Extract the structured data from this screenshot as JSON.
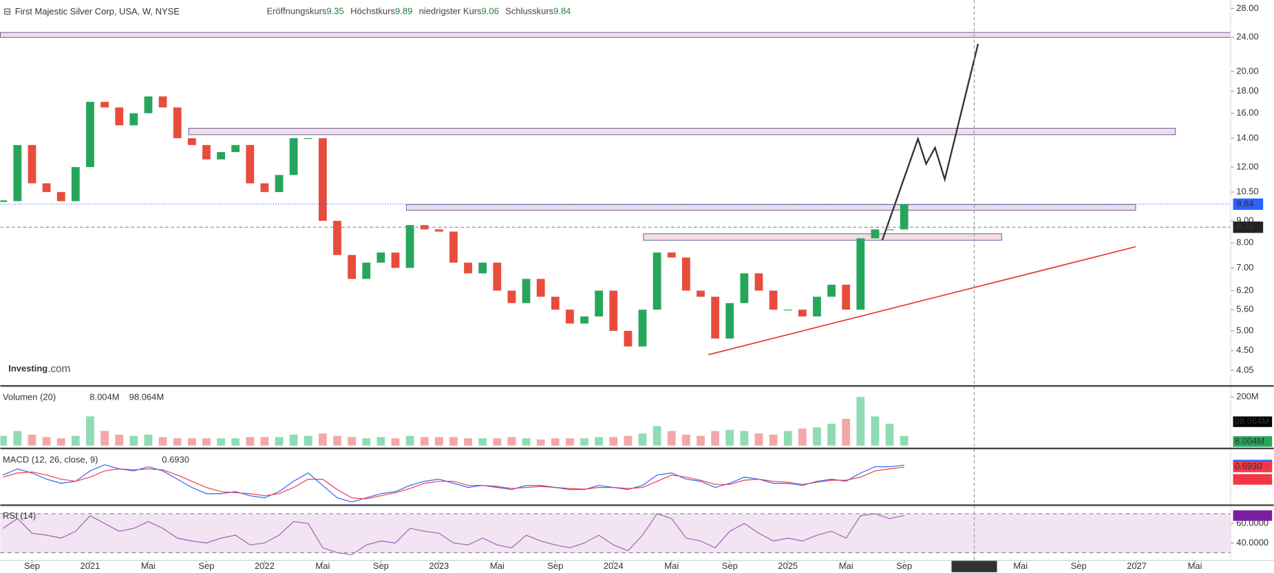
{
  "chart_data": [
    {
      "type": "candlestick",
      "title": "First Majestic Silver Corp, USA, W, NYSE",
      "stats": [
        {
          "label": "Eröffnungskurs",
          "value": 9.35
        },
        {
          "label": "Höchstkurs",
          "value": 9.89
        },
        {
          "label": "niedrigster Kurs",
          "value": 9.06
        },
        {
          "label": "Schlusskurs",
          "value": 9.84
        }
      ],
      "logo": "Investing",
      "logo_suffix": ".com",
      "x": [
        "2020-07",
        "2020-08",
        "2020-09",
        "2020-10",
        "2020-11",
        "2020-12",
        "2021-01",
        "2021-02",
        "2021-03",
        "2021-04",
        "2021-05",
        "2021-06",
        "2021-07",
        "2021-08",
        "2021-09",
        "2021-10",
        "2021-11",
        "2021-12",
        "2022-01",
        "2022-02",
        "2022-03",
        "2022-04",
        "2022-05",
        "2022-06",
        "2022-07",
        "2022-08",
        "2022-09",
        "2022-10",
        "2022-11",
        "2022-12",
        "2023-01",
        "2023-02",
        "2023-03",
        "2023-04",
        "2023-05",
        "2023-06",
        "2023-07",
        "2023-08",
        "2023-09",
        "2023-10",
        "2023-11",
        "2023-12",
        "2024-01",
        "2024-02",
        "2024-03",
        "2024-04",
        "2024-05",
        "2024-06",
        "2024-07",
        "2024-08",
        "2024-09",
        "2024-10",
        "2024-11",
        "2024-12",
        "2025-01",
        "2025-02",
        "2025-03",
        "2025-04",
        "2025-05",
        "2025-06",
        "2025-07",
        "2025-08",
        "2025-09"
      ],
      "close": [
        10.0,
        13.5,
        11.0,
        10.5,
        10.0,
        12.0,
        17.0,
        16.5,
        15.0,
        16.0,
        17.5,
        16.5,
        14.0,
        13.5,
        12.5,
        13.0,
        13.5,
        11.0,
        10.5,
        11.5,
        14.0,
        14.0,
        9.0,
        7.5,
        6.6,
        7.2,
        7.6,
        7.0,
        8.8,
        8.6,
        8.5,
        7.2,
        6.8,
        7.2,
        6.2,
        5.8,
        6.6,
        6.0,
        5.6,
        5.2,
        5.4,
        6.2,
        5.0,
        4.6,
        5.6,
        7.6,
        7.4,
        6.2,
        6.0,
        4.8,
        5.8,
        6.8,
        6.2,
        5.6,
        5.6,
        5.4,
        6.0,
        6.4,
        5.6,
        8.2,
        8.6,
        8.6,
        9.84
      ],
      "up_color": "#26a65b",
      "down_color": "#e84c3d",
      "log_scale": true,
      "ylim": [
        3.75,
        29.3
      ],
      "yticks": [
        {
          "value": 28,
          "label": "28.00"
        },
        {
          "value": 24,
          "label": "24.00"
        },
        {
          "value": 20,
          "label": "20.00"
        },
        {
          "value": 18,
          "label": "18.00"
        },
        {
          "value": 16,
          "label": "16.00"
        },
        {
          "value": 14,
          "label": "14.00"
        },
        {
          "value": 12,
          "label": "12.00"
        },
        {
          "value": 10.5,
          "label": "10.50"
        },
        {
          "value": 9,
          "label": "9.00"
        },
        {
          "value": 8,
          "label": "8.00"
        },
        {
          "value": 7,
          "label": "7.00"
        },
        {
          "value": 6.2,
          "label": "6.20"
        },
        {
          "value": 5.6,
          "label": "5.60"
        },
        {
          "value": 5,
          "label": "5.00"
        },
        {
          "value": 4.5,
          "label": "4.50"
        },
        {
          "value": 4.05,
          "label": "4.05"
        }
      ],
      "xlim": [
        "2020-06",
        "2027-07"
      ],
      "xticks": [
        {
          "value": "2020-09",
          "label": "Sep"
        },
        {
          "value": "2021-01",
          "label": "2021"
        },
        {
          "value": "2021-05",
          "label": "Mai"
        },
        {
          "value": "2021-09",
          "label": "Sep"
        },
        {
          "value": "2022-01",
          "label": "2022"
        },
        {
          "value": "2022-05",
          "label": "Mai"
        },
        {
          "value": "2022-09",
          "label": "Sep"
        },
        {
          "value": "2023-01",
          "label": "2023"
        },
        {
          "value": "2023-05",
          "label": "Mai"
        },
        {
          "value": "2023-09",
          "label": "Sep"
        },
        {
          "value": "2024-01",
          "label": "2024"
        },
        {
          "value": "2024-05",
          "label": "Mai"
        },
        {
          "value": "2024-09",
          "label": "Sep"
        },
        {
          "value": "2025-01",
          "label": "2025"
        },
        {
          "value": "2025-05",
          "label": "Mai"
        },
        {
          "value": "2025-09",
          "label": "Sep"
        },
        {
          "value": "2026-05",
          "label": "Mai"
        },
        {
          "value": "2026-09",
          "label": "Sep"
        },
        {
          "value": "2027-01",
          "label": "2027"
        },
        {
          "value": "2027-05",
          "label": "Mai"
        }
      ],
      "last_price": 9.84,
      "crosshair_price": {
        "value": 8.7,
        "label": "8.70"
      },
      "crosshair_date": "2026-01-26"
    },
    {
      "type": "bar",
      "title": "Volumen (20)",
      "color_up": "#8fdcb4",
      "color_down": "#f4a7a7",
      "values": [
        40,
        60,
        45,
        35,
        30,
        40,
        120,
        60,
        45,
        40,
        45,
        35,
        30,
        30,
        30,
        30,
        30,
        35,
        35,
        35,
        45,
        40,
        50,
        40,
        35,
        30,
        35,
        30,
        40,
        35,
        35,
        35,
        30,
        30,
        30,
        35,
        30,
        25,
        30,
        30,
        30,
        35,
        35,
        40,
        50,
        80,
        60,
        45,
        40,
        60,
        65,
        60,
        50,
        45,
        60,
        70,
        75,
        90,
        110,
        200,
        120,
        90,
        40
      ],
      "readouts": [
        {
          "value": 8.004,
          "label": "8.004M",
          "color": "#26a65b"
        },
        {
          "value": 98.064,
          "label": "98.064M",
          "color": "#000000"
        }
      ],
      "ylim": [
        0,
        237
      ],
      "yticks": [
        {
          "value": 200,
          "label": "200M"
        }
      ]
    },
    {
      "type": "line",
      "title": "MACD (12, 26, close, 9)",
      "ylim": [
        -1.06,
        1.45
      ],
      "series": [
        {
          "color": "#2962ff",
          "values": [
            0.3,
            0.6,
            0.4,
            0.1,
            -0.1,
            0.0,
            0.5,
            0.8,
            0.6,
            0.5,
            0.7,
            0.5,
            0.1,
            -0.3,
            -0.6,
            -0.6,
            -0.5,
            -0.7,
            -0.8,
            -0.5,
            0.0,
            0.4,
            -0.2,
            -0.8,
            -1.0,
            -0.8,
            -0.6,
            -0.5,
            -0.2,
            0.0,
            0.1,
            -0.1,
            -0.3,
            -0.2,
            -0.3,
            -0.4,
            -0.2,
            -0.2,
            -0.3,
            -0.4,
            -0.4,
            -0.2,
            -0.3,
            -0.4,
            -0.2,
            0.3,
            0.4,
            0.1,
            0.0,
            -0.3,
            -0.1,
            0.2,
            0.1,
            -0.1,
            -0.1,
            -0.2,
            0.0,
            0.1,
            0.0,
            0.4,
            0.7,
            0.7,
            0.78
          ]
        },
        {
          "color": "#f23645",
          "values": [
            0.2,
            0.4,
            0.45,
            0.3,
            0.1,
            0.0,
            0.2,
            0.5,
            0.6,
            0.55,
            0.6,
            0.55,
            0.3,
            0.0,
            -0.3,
            -0.5,
            -0.55,
            -0.6,
            -0.7,
            -0.6,
            -0.3,
            0.1,
            0.1,
            -0.4,
            -0.8,
            -0.85,
            -0.7,
            -0.55,
            -0.35,
            -0.1,
            0.0,
            0.0,
            -0.2,
            -0.2,
            -0.25,
            -0.35,
            -0.3,
            -0.25,
            -0.3,
            -0.35,
            -0.38,
            -0.3,
            -0.3,
            -0.35,
            -0.3,
            0.0,
            0.3,
            0.2,
            0.05,
            -0.15,
            -0.15,
            0.05,
            0.1,
            0.0,
            -0.05,
            -0.15,
            -0.05,
            0.05,
            0.05,
            0.2,
            0.5,
            0.6,
            0.69
          ]
        }
      ],
      "readouts": [
        {
          "value": 0.0885,
          "color": "#f23645"
        },
        {
          "value": 0.7816,
          "color": "#2962ff"
        },
        {
          "value": 0.693,
          "label": "0.6930",
          "color": "#f23645"
        }
      ]
    },
    {
      "type": "line",
      "title": "RSI (14)",
      "color": "#9c5fb5",
      "ylim": [
        22.5,
        75.8
      ],
      "values": [
        55,
        65,
        50,
        48,
        45,
        52,
        68,
        60,
        52,
        55,
        62,
        55,
        45,
        42,
        40,
        45,
        48,
        38,
        40,
        48,
        62,
        60,
        35,
        30,
        28,
        38,
        42,
        40,
        55,
        52,
        50,
        40,
        38,
        45,
        38,
        35,
        48,
        42,
        38,
        35,
        40,
        48,
        38,
        32,
        48,
        70,
        65,
        45,
        42,
        35,
        52,
        60,
        50,
        42,
        45,
        42,
        48,
        52,
        45,
        68,
        70,
        65,
        68.0976
      ],
      "bands": [
        70,
        30
      ],
      "yticks": [
        {
          "value": 60,
          "label": "60.0000"
        },
        {
          "value": 40,
          "label": "40.0000"
        }
      ],
      "readouts": [
        {
          "value": 68.0976,
          "color": "#7b1fa2"
        }
      ]
    }
  ]
}
